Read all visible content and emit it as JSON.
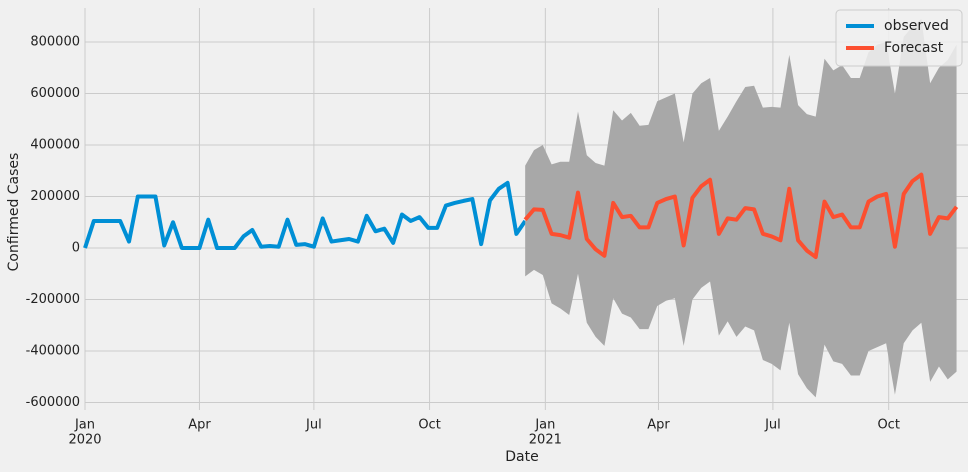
{
  "chart_data": {
    "type": "line",
    "xlabel": "Date",
    "ylabel": "Confirmed Cases",
    "xlim": [
      0,
      100.3
    ],
    "ylim": [
      -629000,
      932000
    ],
    "yticks": [
      -600000,
      -400000,
      -200000,
      0,
      200000,
      400000,
      600000,
      800000
    ],
    "xticks": [
      {
        "value": 0,
        "label": "Jan",
        "year": "2020"
      },
      {
        "value": 13,
        "label": "Apr"
      },
      {
        "value": 26,
        "label": "Jul"
      },
      {
        "value": 39.14,
        "label": "Oct"
      },
      {
        "value": 52.29,
        "label": "Jan",
        "year": "2021"
      },
      {
        "value": 65.14,
        "label": "Apr"
      },
      {
        "value": 78.14,
        "label": "Jul"
      },
      {
        "value": 91.29,
        "label": "Oct"
      }
    ],
    "grid": true,
    "legend": "upper right",
    "series": [
      {
        "name": "observed",
        "color": "#008fd5",
        "x": [
          0,
          1,
          2,
          3,
          4,
          5,
          6,
          7,
          8,
          9,
          10,
          11,
          12,
          13,
          14,
          15,
          16,
          17,
          18,
          19,
          20,
          21,
          22,
          23,
          24,
          25,
          26,
          27,
          28,
          29,
          30,
          31,
          32,
          33,
          34,
          35,
          36,
          37,
          38,
          39,
          40,
          41,
          42,
          43,
          44,
          45,
          46,
          47,
          48,
          49,
          50
        ],
        "values": [
          0,
          105000,
          105000,
          105000,
          105000,
          25000,
          200000,
          200000,
          200000,
          10000,
          100000,
          0,
          0,
          0,
          110000,
          0,
          0,
          0,
          45000,
          70000,
          5000,
          8000,
          5000,
          110000,
          12000,
          15000,
          5000,
          115000,
          25000,
          30000,
          35000,
          25000,
          125000,
          65000,
          75000,
          20000,
          130000,
          105000,
          120000,
          78000,
          78000,
          165000,
          175000,
          183000,
          190000,
          15000,
          185000,
          230000,
          253000,
          55000,
          105000
        ]
      },
      {
        "name": "Forecast",
        "color": "#fc4f30",
        "band_color": "#a8a8a8",
        "x": [
          50,
          51,
          52,
          53,
          54,
          55,
          56,
          57,
          58,
          59,
          60,
          61,
          62,
          63,
          64,
          65,
          66,
          67,
          68,
          69,
          70,
          71,
          72,
          73,
          74,
          75,
          76,
          77,
          78,
          79,
          80,
          81,
          82,
          83,
          84,
          85,
          86,
          87,
          88,
          89,
          90,
          91,
          92,
          93,
          94,
          95,
          96,
          97,
          98,
          99
        ],
        "values": [
          110000,
          150000,
          148000,
          55000,
          50000,
          40000,
          215000,
          35000,
          -5000,
          -30000,
          175000,
          120000,
          125000,
          80000,
          80000,
          175000,
          190000,
          200000,
          10000,
          195000,
          240000,
          265000,
          55000,
          115000,
          110000,
          155000,
          150000,
          55000,
          45000,
          30000,
          230000,
          30000,
          -10000,
          -35000,
          180000,
          120000,
          130000,
          80000,
          80000,
          180000,
          200000,
          210000,
          5000,
          210000,
          260000,
          285000,
          55000,
          120000,
          115000,
          160000
        ],
        "upper": [
          320000,
          380000,
          400000,
          325000,
          335000,
          335000,
          530000,
          360000,
          330000,
          320000,
          535000,
          495000,
          525000,
          475000,
          478000,
          570000,
          585000,
          600000,
          410000,
          600000,
          640000,
          660000,
          455000,
          510000,
          570000,
          625000,
          630000,
          545000,
          548000,
          545000,
          750000,
          555000,
          520000,
          510000,
          735000,
          690000,
          710000,
          660000,
          660000,
          760000,
          790000,
          800000,
          600000,
          820000,
          860000,
          890000,
          640000,
          700000,
          730000,
          790000
        ],
        "lower": [
          -110000,
          -85000,
          -105000,
          -215000,
          -235000,
          -260000,
          -100000,
          -290000,
          -345000,
          -380000,
          -195000,
          -255000,
          -270000,
          -315000,
          -315000,
          -225000,
          -205000,
          -195000,
          -380000,
          -200000,
          -155000,
          -130000,
          -340000,
          -285000,
          -345000,
          -305000,
          -320000,
          -435000,
          -450000,
          -475000,
          -290000,
          -490000,
          -545000,
          -580000,
          -375000,
          -440000,
          -450000,
          -495000,
          -495000,
          -400000,
          -385000,
          -370000,
          -570000,
          -370000,
          -320000,
          -290000,
          -520000,
          -460000,
          -510000,
          -480000
        ]
      }
    ]
  }
}
